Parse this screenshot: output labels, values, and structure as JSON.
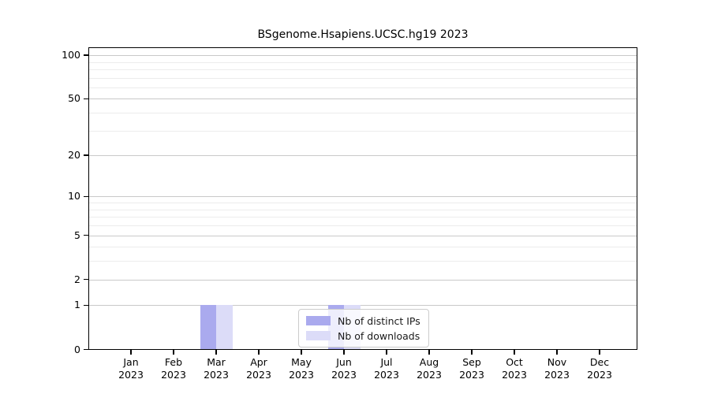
{
  "chart_data": {
    "type": "bar",
    "title": "BSgenome.Hsapiens.UCSC.hg19 2023",
    "categories": [
      "Jan",
      "Feb",
      "Mar",
      "Apr",
      "May",
      "Jun",
      "Jul",
      "Aug",
      "Sep",
      "Oct",
      "Nov",
      "Dec"
    ],
    "year_label": "2023",
    "series": [
      {
        "name": "Nb of distinct IPs",
        "color": "#aaaaee",
        "values": [
          0,
          0,
          1,
          0,
          0,
          1,
          0,
          0,
          0,
          0,
          0,
          0
        ]
      },
      {
        "name": "Nb of downloads",
        "color": "#dcdcf8",
        "values": [
          0,
          0,
          1,
          0,
          0,
          1,
          0,
          0,
          0,
          0,
          0,
          0
        ]
      }
    ],
    "y_axis": {
      "scale": "log1p",
      "tick_values": [
        0,
        1,
        2,
        5,
        10,
        20,
        50,
        100
      ],
      "minor_gridline_values": [
        3,
        4,
        6,
        7,
        8,
        9,
        30,
        40,
        60,
        70,
        80,
        90
      ],
      "ylim": [
        0,
        110
      ]
    },
    "x_axis": {
      "label_format": "month over year"
    },
    "legend": {
      "position": "bottom-center"
    },
    "colors": {
      "major_grid": "#c9c9c9",
      "minor_grid": "#ececec",
      "axis": "#000000",
      "background": "#ffffff"
    }
  }
}
